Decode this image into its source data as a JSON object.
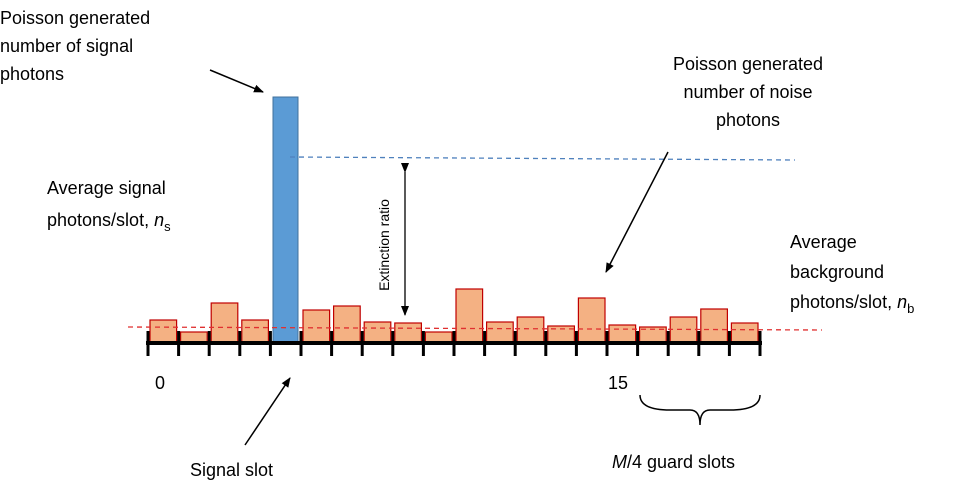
{
  "signal_note": {
    "lines": [
      "Poisson generated",
      "number of signal",
      "photons"
    ]
  },
  "noise_note": {
    "lines": [
      "Poisson generated",
      "number of noise",
      "photons"
    ]
  },
  "average_signal": {
    "lines": [
      "Average signal",
      "photons/slot, "
    ],
    "symbol": "n",
    "subscript": "s"
  },
  "extinction": "Extinction ratio",
  "average_background": {
    "lines": [
      "Average",
      "background",
      "photons/slot, "
    ],
    "symbol": "n",
    "subscript": "b"
  },
  "slot_labels": [
    "0",
    "15"
  ],
  "signal_slot": "Signal slot",
  "guard": {
    "symbol": "M",
    "text": "/4 guard slots"
  }
}
